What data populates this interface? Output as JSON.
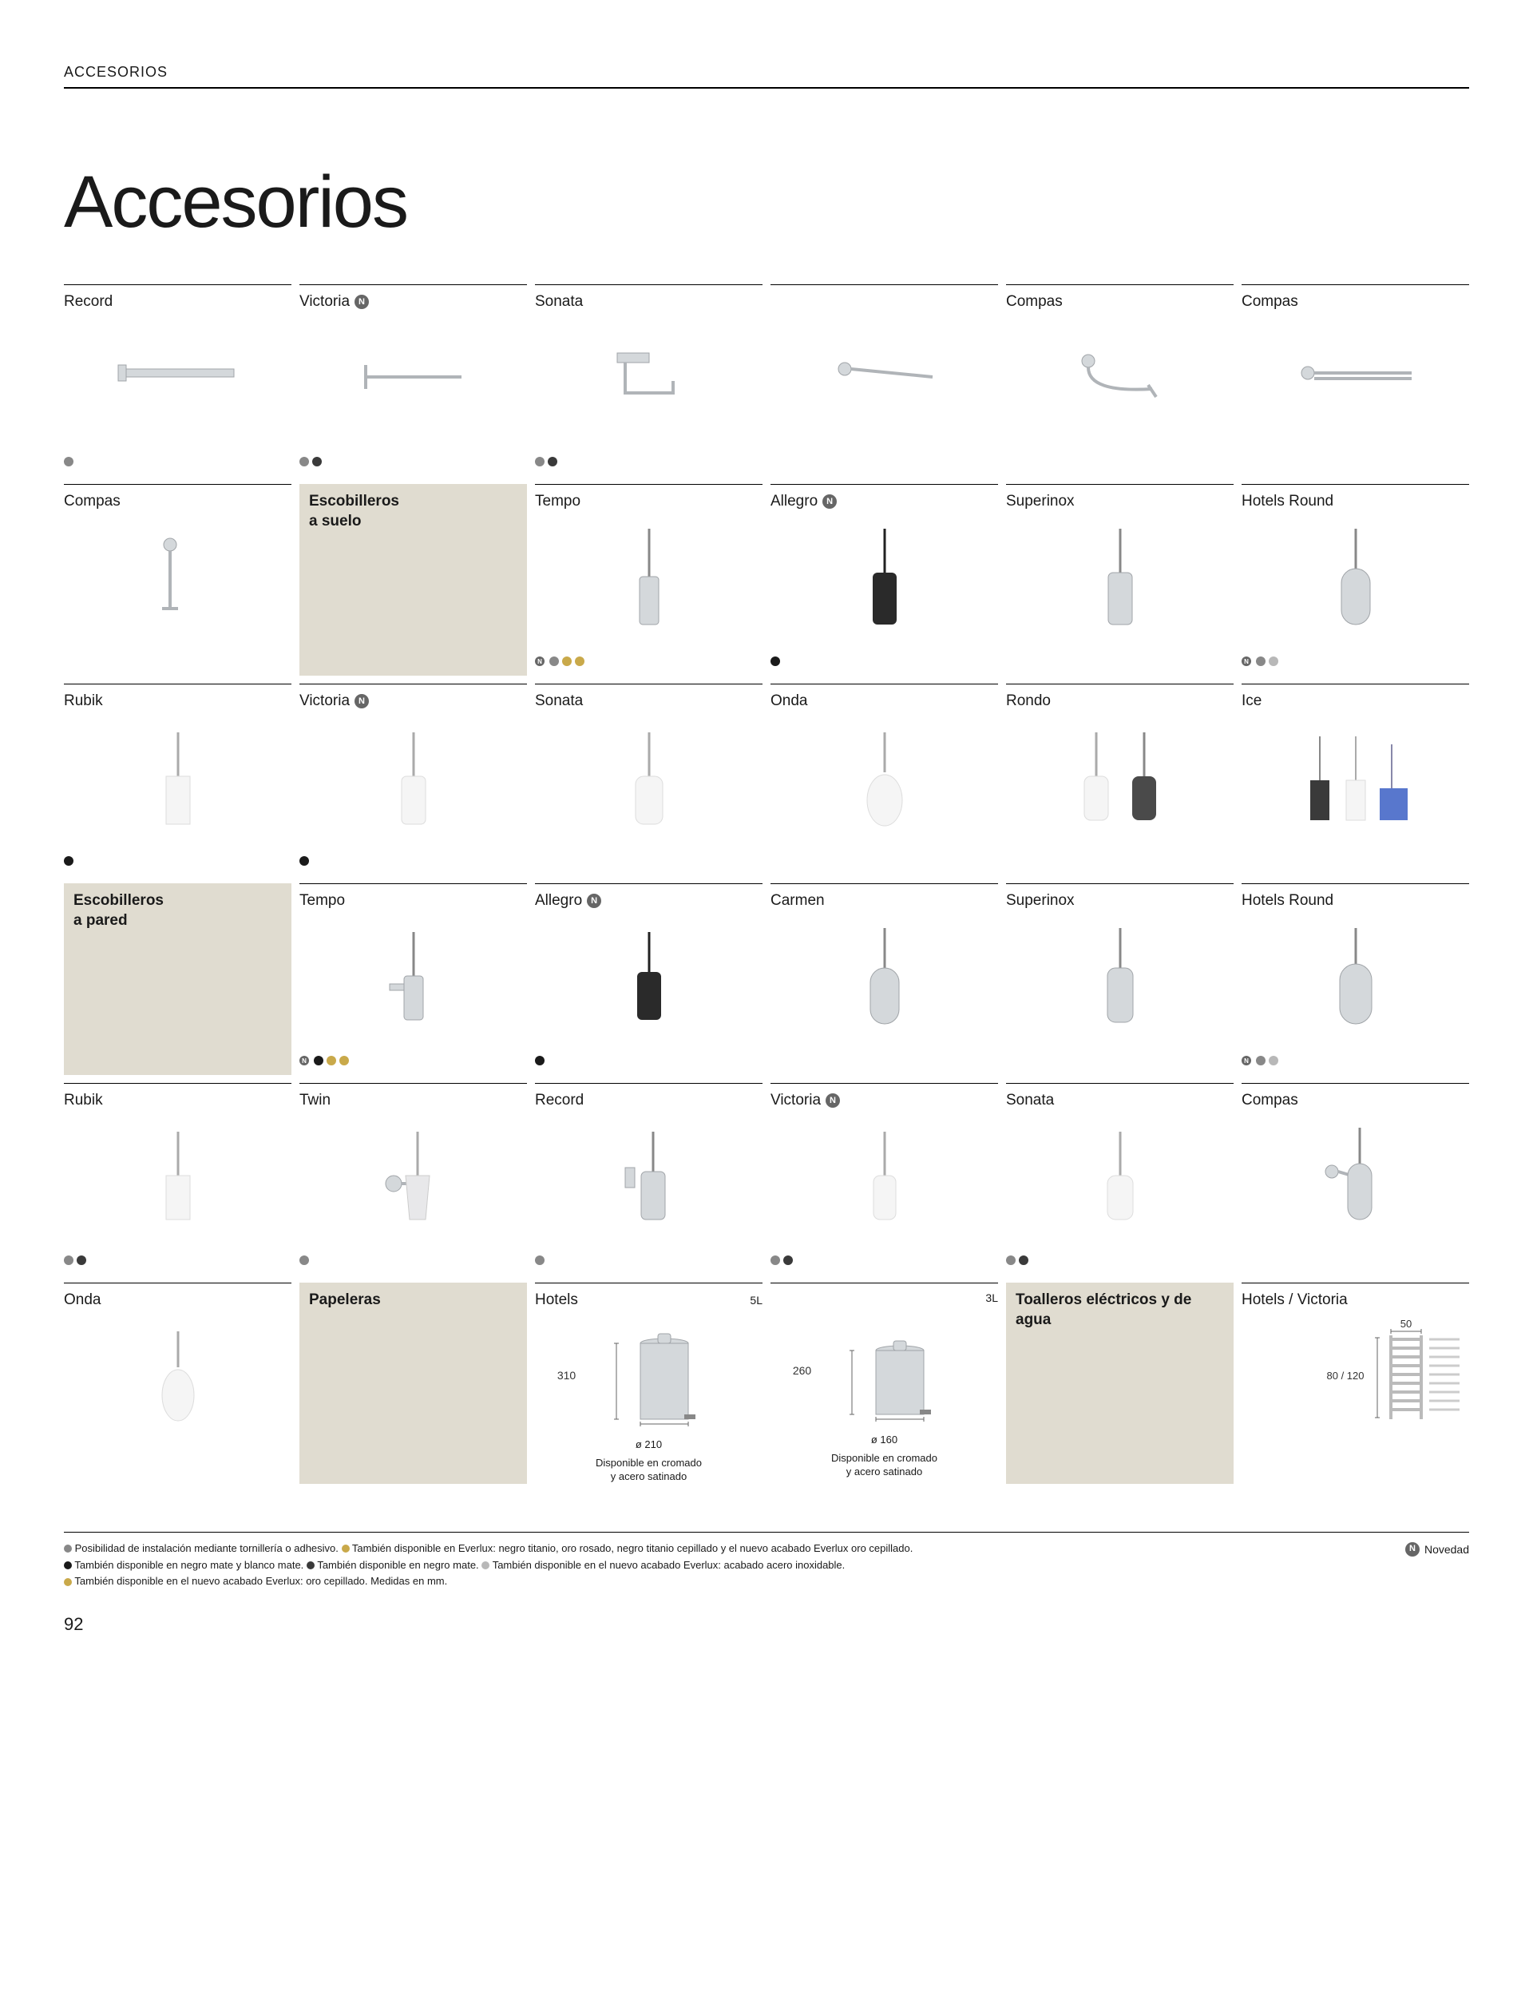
{
  "header": {
    "label": "ACCESORIOS"
  },
  "title": "Accesorios",
  "pageNumber": "92",
  "novedadLabel": "Novedad",
  "colors": {
    "grey": "#888888",
    "darkgrey": "#3a3a3a",
    "black": "#1a1a1a",
    "gold": "#c9a94a",
    "steel": "#b8b8b8",
    "category_bg": "#e0dcd0"
  },
  "rows": [
    [
      {
        "type": "product",
        "name": "Record",
        "icon": "holder-bar",
        "swatches": [
          "#888888"
        ]
      },
      {
        "type": "product",
        "name": "Victoria",
        "badge": "N",
        "icon": "holder-open",
        "swatches": [
          "#888888",
          "#3a3a3a"
        ]
      },
      {
        "type": "product",
        "name": "Sonata",
        "icon": "holder-plate",
        "swatches": [
          "#888888",
          "#3a3a3a"
        ]
      },
      {
        "type": "product",
        "name": "",
        "icon": "holder-arm"
      },
      {
        "type": "product",
        "name": "Compas",
        "icon": "holder-ring"
      },
      {
        "type": "product",
        "name": "Compas",
        "icon": "holder-double"
      }
    ],
    [
      {
        "type": "product",
        "name": "Compas",
        "icon": "holder-vertical"
      },
      {
        "type": "category",
        "title": "Escobilleros a suelo"
      },
      {
        "type": "product",
        "name": "Tempo",
        "icon": "brush-floor-slim",
        "swatches": [
          "#888888",
          "#c9a94a",
          "#c9a94a"
        ],
        "badgeSmall": "N"
      },
      {
        "type": "product",
        "name": "Allegro",
        "badge": "N",
        "icon": "brush-floor-black",
        "swatches": [
          "#1a1a1a"
        ]
      },
      {
        "type": "product",
        "name": "Superinox",
        "icon": "brush-floor-steel"
      },
      {
        "type": "product",
        "name": "Hotels Round",
        "icon": "brush-floor-round",
        "swatches": [
          "#888888",
          "#b8b8b8"
        ],
        "badgeSmall": "N"
      }
    ],
    [
      {
        "type": "product",
        "name": "Rubik",
        "icon": "brush-floor-square",
        "swatches": [
          "#1a1a1a"
        ]
      },
      {
        "type": "product",
        "name": "Victoria",
        "badge": "N",
        "icon": "brush-floor-white",
        "swatches": [
          "#1a1a1a"
        ]
      },
      {
        "type": "product",
        "name": "Sonata",
        "icon": "brush-floor-white2"
      },
      {
        "type": "product",
        "name": "Onda",
        "icon": "brush-floor-white3"
      },
      {
        "type": "product",
        "name": "Rondo",
        "icon": "brush-floor-multi"
      },
      {
        "type": "product",
        "name": "Ice",
        "icon": "brush-floor-ice"
      }
    ],
    [
      {
        "type": "category",
        "title": "Escobilleros a pared"
      },
      {
        "type": "product",
        "name": "Tempo",
        "icon": "brush-wall-slim",
        "swatches": [
          "#1a1a1a",
          "#c9a94a",
          "#c9a94a"
        ],
        "badgeSmall": "N"
      },
      {
        "type": "product",
        "name": "Allegro",
        "badge": "N",
        "icon": "brush-wall-black",
        "swatches": [
          "#1a1a1a"
        ]
      },
      {
        "type": "product",
        "name": "Carmen",
        "icon": "brush-wall-steel"
      },
      {
        "type": "product",
        "name": "Superinox",
        "icon": "brush-wall-steel2"
      },
      {
        "type": "product",
        "name": "Hotels Round",
        "icon": "brush-wall-round",
        "swatches": [
          "#888888",
          "#b8b8b8"
        ],
        "badgeSmall": "N"
      }
    ],
    [
      {
        "type": "product",
        "name": "Rubik",
        "icon": "brush-wall-square",
        "swatches": [
          "#888888",
          "#3a3a3a"
        ]
      },
      {
        "type": "product",
        "name": "Twin",
        "icon": "brush-wall-twin",
        "swatches": [
          "#888888"
        ]
      },
      {
        "type": "product",
        "name": "Record",
        "icon": "brush-wall-record",
        "swatches": [
          "#888888"
        ]
      },
      {
        "type": "product",
        "name": "Victoria",
        "badge": "N",
        "icon": "brush-wall-victoria",
        "swatches": [
          "#888888",
          "#3a3a3a"
        ]
      },
      {
        "type": "product",
        "name": "Sonata",
        "icon": "brush-wall-sonata",
        "swatches": [
          "#888888",
          "#3a3a3a"
        ]
      },
      {
        "type": "product",
        "name": "Compas",
        "icon": "brush-wall-compas"
      }
    ],
    [
      {
        "type": "product",
        "name": "Onda",
        "icon": "brush-wall-onda"
      },
      {
        "type": "category",
        "title": "Papeleras"
      },
      {
        "type": "bin",
        "name": "Hotels",
        "sub": "5L",
        "height": "310",
        "diameter": "ø 210",
        "caption": "Disponible en cromado y acero satinado"
      },
      {
        "type": "bin",
        "name": "",
        "sub": "3L",
        "height": "260",
        "diameter": "ø 160",
        "caption": "Disponible en cromado y acero satinado"
      },
      {
        "type": "category",
        "title": "Toalleros eléctricos y de agua"
      },
      {
        "type": "radiator",
        "name": "Hotels / Victoria",
        "width": "50",
        "depth": "80 / 120"
      }
    ]
  ],
  "footnotes": [
    {
      "swatch": "#888888",
      "text": "Posibilidad de instalación mediante tornillería o adhesivo."
    },
    {
      "swatch": "#c9a94a",
      "text": "También disponible en Everlux: negro titanio, oro rosado, negro titanio cepillado y el nuevo acabado Everlux oro cepillado."
    },
    {
      "swatch": "#1a1a1a",
      "text": "También disponible en negro mate y blanco mate."
    },
    {
      "swatch": "#3a3a3a",
      "text": "También disponible en negro mate."
    },
    {
      "swatch": "#b8b8b8",
      "text": "También disponible en el nuevo acabado Everlux: acabado acero inoxidable."
    },
    {
      "swatch": "#c9a94a",
      "text": "También disponible en el nuevo acabado Everlux: oro cepillado. Medidas en mm."
    }
  ]
}
